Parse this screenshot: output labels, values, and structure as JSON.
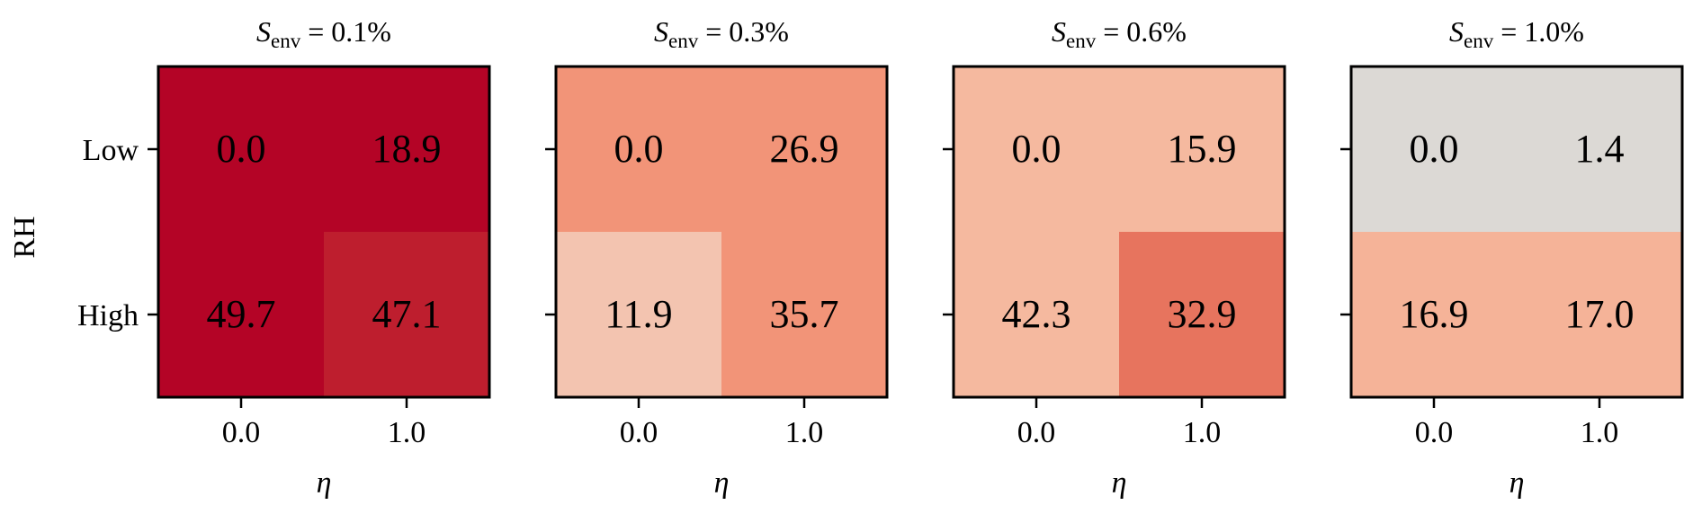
{
  "chart_data": [
    {
      "type": "heatmap",
      "title_main": "S",
      "title_sub": "env",
      "title_rest": " = 0.1%",
      "xlabel": "η",
      "ylabel": "RH",
      "x_categories": [
        "0.0",
        "1.0"
      ],
      "y_categories": [
        "Low",
        "High"
      ],
      "values": [
        [
          0.0,
          18.9
        ],
        [
          49.7,
          47.1
        ]
      ],
      "labels": [
        [
          "0.0",
          "18.9"
        ],
        [
          "49.7",
          "47.1"
        ]
      ],
      "colors": [
        [
          "#b40426",
          "#b40426"
        ],
        [
          "#b40426",
          "#be1e2e"
        ]
      ]
    },
    {
      "type": "heatmap",
      "title_main": "S",
      "title_sub": "env",
      "title_rest": " = 0.3%",
      "xlabel": "η",
      "ylabel": "",
      "x_categories": [
        "0.0",
        "1.0"
      ],
      "y_categories": [
        "Low",
        "High"
      ],
      "values": [
        [
          0.0,
          26.9
        ],
        [
          11.9,
          35.7
        ]
      ],
      "labels": [
        [
          "0.0",
          "26.9"
        ],
        [
          "11.9",
          "35.7"
        ]
      ],
      "colors": [
        [
          "#f29478",
          "#f29478"
        ],
        [
          "#f3c4b0",
          "#f29478"
        ]
      ]
    },
    {
      "type": "heatmap",
      "title_main": "S",
      "title_sub": "env",
      "title_rest": " = 0.6%",
      "xlabel": "η",
      "ylabel": "",
      "x_categories": [
        "0.0",
        "1.0"
      ],
      "y_categories": [
        "Low",
        "High"
      ],
      "values": [
        [
          0.0,
          15.9
        ],
        [
          42.3,
          32.9
        ]
      ],
      "labels": [
        [
          "0.0",
          "15.9"
        ],
        [
          "42.3",
          "32.9"
        ]
      ],
      "colors": [
        [
          "#f5b99f",
          "#f5b99f"
        ],
        [
          "#f5b99f",
          "#e7745e"
        ]
      ]
    },
    {
      "type": "heatmap",
      "title_main": "S",
      "title_sub": "env",
      "title_rest": " = 1.0%",
      "xlabel": "η",
      "ylabel": "",
      "x_categories": [
        "0.0",
        "1.0"
      ],
      "y_categories": [
        "Low",
        "High"
      ],
      "values": [
        [
          0.0,
          1.4
        ],
        [
          16.9,
          17.0
        ]
      ],
      "labels": [
        [
          "0.0",
          "1.4"
        ],
        [
          "16.9",
          "17.0"
        ]
      ],
      "colors": [
        [
          "#dcd9d5",
          "#dcd9d5"
        ],
        [
          "#f5b398",
          "#f5b398"
        ]
      ]
    }
  ]
}
